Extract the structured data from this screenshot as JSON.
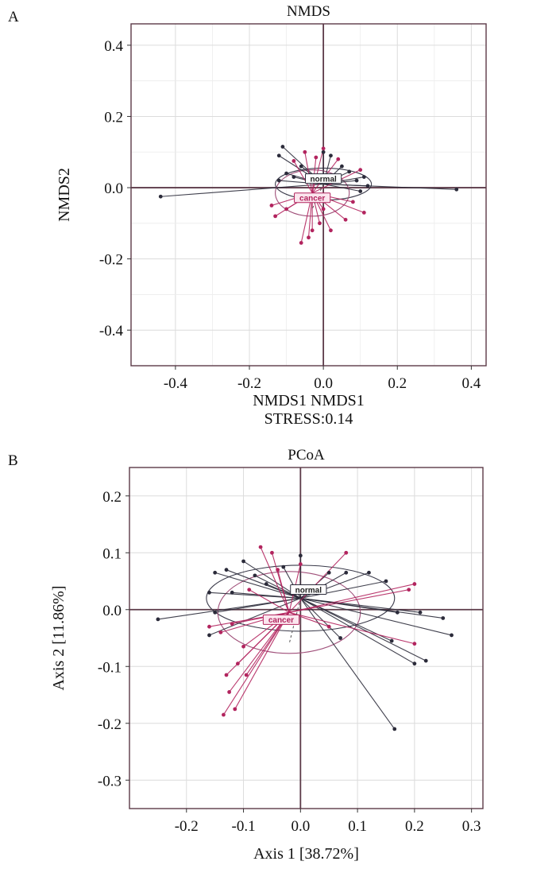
{
  "chart_data": [
    {
      "panel_label": "A",
      "type": "scatter",
      "title": "NMDS",
      "xlabel": "NMDS1 NMDS1",
      "xlabel2": "STRESS:0.14",
      "ylabel": "NMDS2",
      "xlim": [
        -0.52,
        0.44
      ],
      "ylim": [
        -0.5,
        0.46
      ],
      "xticks": [
        -0.4,
        -0.2,
        0.0,
        0.2,
        0.4
      ],
      "yticks": [
        0.4,
        0.2,
        0.0,
        -0.2,
        -0.4
      ],
      "xtick_labels": [
        "-0.4",
        "-0.2",
        "0.0",
        "0.2",
        "0.4"
      ],
      "ytick_labels": [
        "0.4",
        "0.2",
        "0.0",
        "-0.2",
        "-0.4"
      ],
      "grid": true,
      "groups": [
        {
          "name": "normal",
          "color": "#2b2b3a",
          "centroid": [
            0.0,
            0.01
          ],
          "ellipse": {
            "rx": 0.13,
            "ry": 0.045
          },
          "points": [
            [
              -0.44,
              -0.025
            ],
            [
              0.36,
              -0.005
            ],
            [
              -0.11,
              0.115
            ],
            [
              -0.12,
              0.09
            ],
            [
              -0.1,
              0.04
            ],
            [
              -0.08,
              0.03
            ],
            [
              0.02,
              0.09
            ],
            [
              0.05,
              0.06
            ],
            [
              0.07,
              0.045
            ],
            [
              0.11,
              0.03
            ],
            [
              0.12,
              0.005
            ],
            [
              -0.06,
              0.06
            ],
            [
              0.0,
              0.1
            ],
            [
              0.09,
              0.02
            ],
            [
              -0.12,
              0.02
            ],
            [
              0.1,
              -0.01
            ]
          ]
        },
        {
          "name": "cancer",
          "color": "#b2245e",
          "centroid": [
            -0.03,
            -0.015
          ],
          "ellipse": {
            "rx": 0.1,
            "ry": 0.065
          },
          "points": [
            [
              -0.06,
              -0.155
            ],
            [
              -0.04,
              -0.14
            ],
            [
              -0.03,
              -0.12
            ],
            [
              -0.01,
              -0.1
            ],
            [
              0.02,
              -0.12
            ],
            [
              -0.13,
              -0.08
            ],
            [
              -0.1,
              -0.06
            ],
            [
              -0.14,
              -0.05
            ],
            [
              0.11,
              -0.07
            ],
            [
              0.08,
              -0.04
            ],
            [
              0.0,
              0.11
            ],
            [
              -0.05,
              0.1
            ],
            [
              -0.02,
              0.085
            ],
            [
              0.04,
              0.08
            ],
            [
              -0.08,
              0.075
            ],
            [
              0.1,
              0.05
            ],
            [
              0.0,
              -0.06
            ],
            [
              0.06,
              -0.09
            ]
          ]
        }
      ]
    },
    {
      "panel_label": "B",
      "type": "scatter",
      "title": "PCoA",
      "xlabel": "Axis 1 [38.72%]",
      "ylabel": "Axis 2 [11.86%]",
      "xlim": [
        -0.3,
        0.32
      ],
      "ylim": [
        -0.35,
        0.25
      ],
      "xticks": [
        -0.2,
        -0.1,
        0.0,
        0.1,
        0.2,
        0.3
      ],
      "yticks": [
        0.2,
        0.1,
        0.0,
        -0.1,
        -0.2,
        -0.3
      ],
      "xtick_labels": [
        "-0.2",
        "-0.1",
        "0.0",
        "0.1",
        "0.2",
        "0.3"
      ],
      "ytick_labels": [
        "0.2",
        "0.1",
        "0.0",
        "-0.1",
        "-0.2",
        "-0.3"
      ],
      "grid": true,
      "groups": [
        {
          "name": "normal",
          "color": "#2b2b3a",
          "centroid": [
            0.0,
            0.02
          ],
          "ellipse": {
            "rx": 0.165,
            "ry": 0.058
          },
          "points": [
            [
              -0.25,
              -0.017
            ],
            [
              -0.15,
              0.065
            ],
            [
              -0.16,
              0.03
            ],
            [
              -0.15,
              -0.005
            ],
            [
              -0.16,
              -0.045
            ],
            [
              -0.13,
              0.07
            ],
            [
              -0.12,
              0.03
            ],
            [
              -0.1,
              0.085
            ],
            [
              -0.08,
              0.06
            ],
            [
              -0.06,
              0.045
            ],
            [
              0.0,
              0.095
            ],
            [
              0.05,
              0.065
            ],
            [
              0.08,
              0.065
            ],
            [
              0.12,
              0.065
            ],
            [
              0.15,
              0.05
            ],
            [
              0.17,
              -0.005
            ],
            [
              0.21,
              -0.005
            ],
            [
              0.25,
              -0.015
            ],
            [
              0.265,
              -0.045
            ],
            [
              0.22,
              -0.09
            ],
            [
              0.2,
              -0.095
            ],
            [
              0.16,
              -0.055
            ],
            [
              0.07,
              -0.05
            ],
            [
              0.165,
              -0.21
            ],
            [
              -0.03,
              0.075
            ]
          ]
        },
        {
          "name": "cancer",
          "color": "#b2245e",
          "centroid": [
            -0.02,
            -0.005
          ],
          "ellipse": {
            "rx": 0.125,
            "ry": 0.072
          },
          "points": [
            [
              -0.135,
              -0.185
            ],
            [
              -0.115,
              -0.175
            ],
            [
              -0.125,
              -0.145
            ],
            [
              -0.13,
              -0.115
            ],
            [
              -0.095,
              -0.115
            ],
            [
              -0.11,
              -0.095
            ],
            [
              -0.1,
              -0.065
            ],
            [
              -0.14,
              -0.04
            ],
            [
              -0.16,
              -0.03
            ],
            [
              -0.12,
              -0.025
            ],
            [
              -0.05,
              0.1
            ],
            [
              -0.07,
              0.11
            ],
            [
              -0.04,
              0.07
            ],
            [
              0.08,
              0.1
            ],
            [
              0.0,
              0.08
            ],
            [
              0.2,
              0.045
            ],
            [
              0.19,
              0.035
            ],
            [
              0.2,
              -0.06
            ],
            [
              -0.09,
              0.035
            ],
            [
              0.05,
              -0.03
            ]
          ]
        }
      ]
    }
  ],
  "colors": {
    "normal": "#2b2b3a",
    "cancer": "#b2245e",
    "ellipse_normal": "#3a3a4a",
    "ellipse_cancer": "#a0507a",
    "grid": "#dcdcdc",
    "zero_line": "#5c3a48",
    "frame": "#5c3a48"
  }
}
